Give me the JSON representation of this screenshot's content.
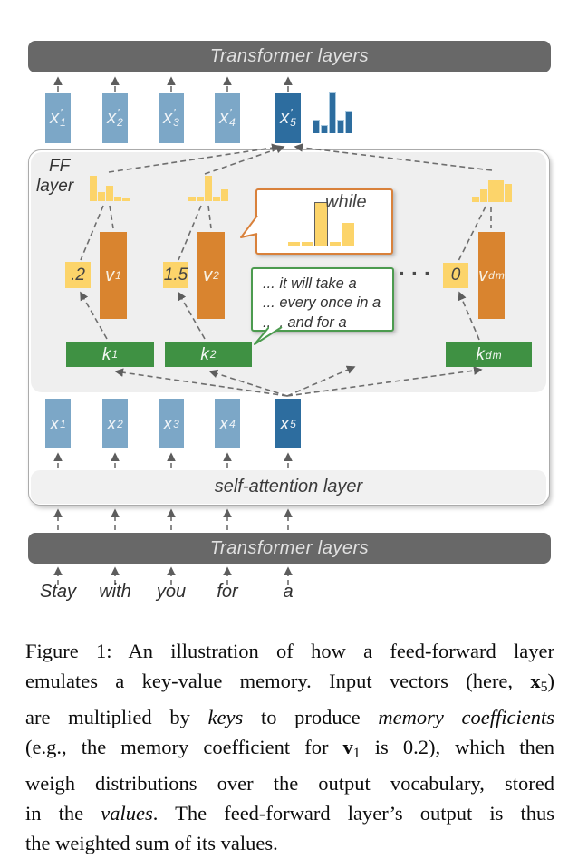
{
  "figure": {
    "top_transformer_bar": "Transformer layers",
    "bottom_transformer_bar": "Transformer layers",
    "self_attention_label": "self-attention layer",
    "ff_label": {
      "line1": "FF",
      "line2": "layer"
    },
    "input_tokens": [
      "Stay",
      "with",
      "you",
      "for",
      "a"
    ],
    "output_vectors": [
      {
        "main": "x",
        "prime": "′",
        "sub": "1"
      },
      {
        "main": "x",
        "prime": "′",
        "sub": "2"
      },
      {
        "main": "x",
        "prime": "′",
        "sub": "3"
      },
      {
        "main": "x",
        "prime": "′",
        "sub": "4"
      },
      {
        "main": "x",
        "prime": "′",
        "sub": "5"
      }
    ],
    "input_vectors": [
      {
        "main": "x",
        "sub": "1"
      },
      {
        "main": "x",
        "sub": "2"
      },
      {
        "main": "x",
        "sub": "3"
      },
      {
        "main": "x",
        "sub": "4"
      },
      {
        "main": "x",
        "sub": "5"
      }
    ],
    "value_vectors": [
      {
        "main": "v",
        "sub": "1"
      },
      {
        "main": "v",
        "sub": "2"
      },
      {
        "main": "v",
        "sub": "d",
        "sub2": "m"
      }
    ],
    "key_vectors": [
      {
        "main": "k",
        "sub": "1"
      },
      {
        "main": "k",
        "sub": "2"
      },
      {
        "main": "k",
        "sub": "d",
        "sub2": "m"
      }
    ],
    "memory_coefficients": [
      ".2",
      "1.5",
      "0"
    ],
    "ellipsis": "···",
    "while_bubble": {
      "word": "while",
      "bars": [
        5,
        5,
        47,
        5,
        26
      ],
      "highlight_index": 2
    },
    "green_bubble_lines": [
      "... it will take a",
      "... every once in a",
      "... , and for a"
    ],
    "distributions": {
      "output": [
        15,
        9,
        45,
        15,
        24
      ],
      "value1": [
        28,
        10,
        17,
        5,
        3
      ],
      "value2": [
        5,
        5,
        28,
        5,
        13
      ],
      "value_dm": [
        6,
        14,
        24,
        24,
        20
      ]
    }
  },
  "caption": {
    "lines": [
      [
        {
          "t": "Figure 1:  An illustration of how a feed-forward layer"
        }
      ],
      [
        {
          "t": "emulates a key-value memory. Input vectors (here, "
        },
        {
          "t": "x",
          "s": "b"
        },
        {
          "t": "5",
          "s": "sub"
        },
        {
          "t": ")"
        }
      ],
      [
        {
          "t": "are multiplied by "
        },
        {
          "t": "keys",
          "s": "i"
        },
        {
          "t": " to produce "
        },
        {
          "t": "memory coefficients",
          "s": "i"
        }
      ],
      [
        {
          "t": "(e.g., the memory coefficient for "
        },
        {
          "t": "v",
          "s": "b"
        },
        {
          "t": "1",
          "s": "sub"
        },
        {
          "t": " is 0.2), which then"
        }
      ],
      [
        {
          "t": "weigh distributions over the output vocabulary, stored"
        }
      ],
      [
        {
          "t": "in the "
        },
        {
          "t": "values",
          "s": "i"
        },
        {
          "t": ".  The feed-forward layer’s output is thus"
        }
      ],
      [
        {
          "t": "the weighted sum of its values."
        }
      ]
    ]
  },
  "colors": {
    "transformer_bar": "#686868",
    "vector_light_blue": "#7ca7c7",
    "vector_dark_blue": "#2d6d9f",
    "value_orange": "#d9842f",
    "key_green": "#3f9143",
    "coefficient_yellow": "#fcd46a",
    "ff_panel_gray": "#efefef",
    "bubble_orange_border": "#d9813b",
    "bubble_green_border": "#4c9b4f"
  }
}
